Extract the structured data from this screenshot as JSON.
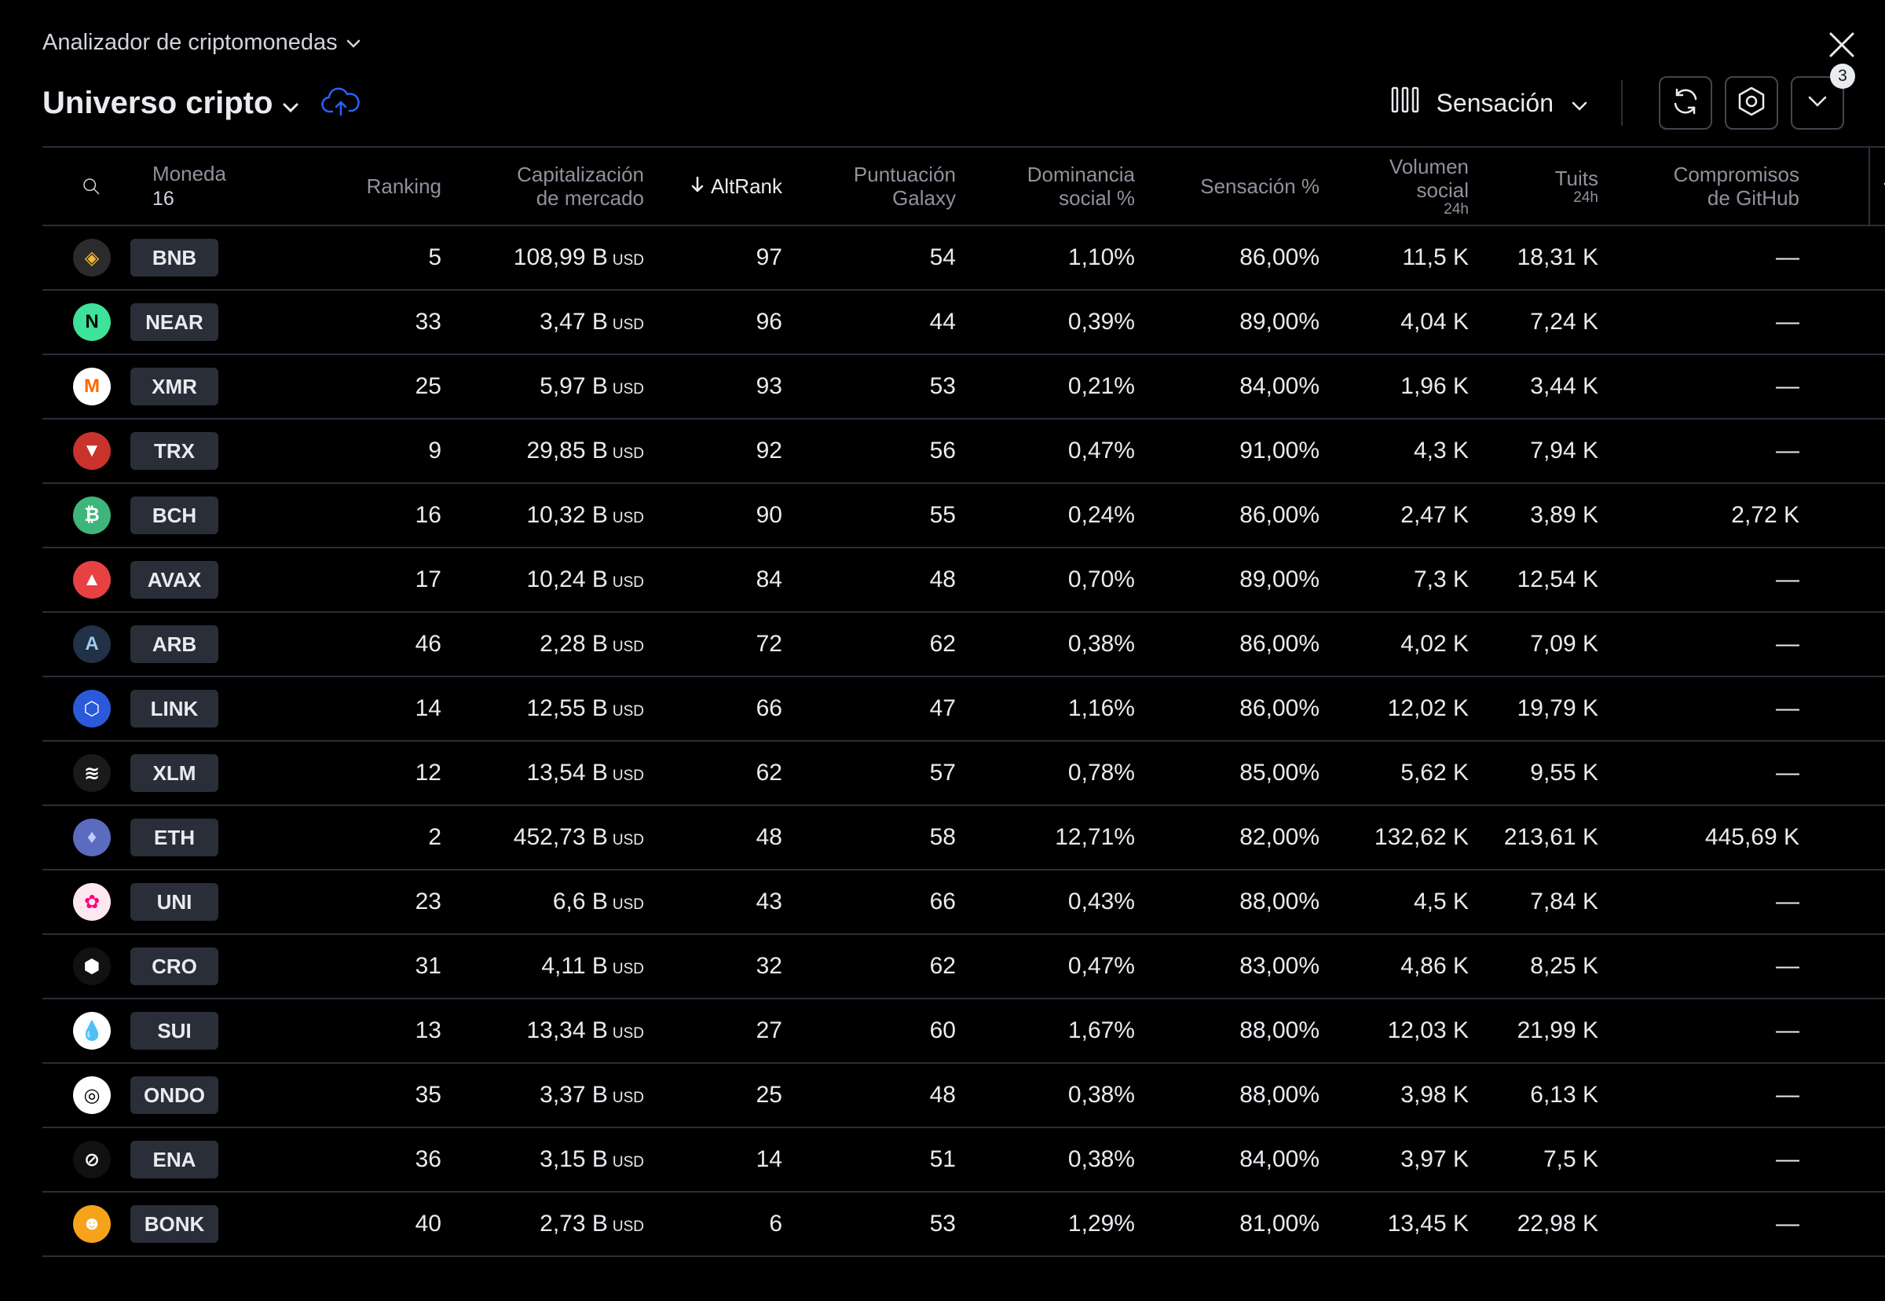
{
  "app": {
    "title": "Analizador de criptomonedas"
  },
  "screen": {
    "title": "Universo cripto"
  },
  "toolbar": {
    "preset_label": "Sensación",
    "badge_count": "3"
  },
  "table": {
    "headers": {
      "coin": "Moneda",
      "coin_count": "16",
      "ranking": "Ranking",
      "market_cap_l1": "Capitalización",
      "market_cap_l2": "de mercado",
      "altrank": "AltRank",
      "galaxy_l1": "Puntuación",
      "galaxy_l2": "Galaxy",
      "dominance_l1": "Dominancia",
      "dominance_l2": "social %",
      "sentiment": "Sensación %",
      "volume_l1": "Volumen",
      "volume_l2": "social",
      "volume_sub": "24h",
      "tweets": "Tuits",
      "tweets_sub": "24h",
      "github_l1": "Compromisos",
      "github_l2": "de GitHub"
    },
    "rows": [
      {
        "ticker": "BNB",
        "ranking": "5",
        "market_cap": "108,99 B",
        "currency": "USD",
        "altrank": "97",
        "galaxy": "54",
        "dominance": "1,10%",
        "sentiment": "86,00%",
        "volume": "11,5 K",
        "tweets": "18,31 K",
        "github": "—",
        "logo_color": "#f3ba2f",
        "logo_bg": "#2b2b2b",
        "logo_glyph": "◈"
      },
      {
        "ticker": "NEAR",
        "ranking": "33",
        "market_cap": "3,47 B",
        "currency": "USD",
        "altrank": "96",
        "galaxy": "44",
        "dominance": "0,39%",
        "sentiment": "89,00%",
        "volume": "4,04 K",
        "tweets": "7,24 K",
        "github": "—",
        "logo_color": "#000000",
        "logo_bg": "#3ee29b",
        "logo_glyph": "N"
      },
      {
        "ticker": "XMR",
        "ranking": "25",
        "market_cap": "5,97 B",
        "currency": "USD",
        "altrank": "93",
        "galaxy": "53",
        "dominance": "0,21%",
        "sentiment": "84,00%",
        "volume": "1,96 K",
        "tweets": "3,44 K",
        "github": "—",
        "logo_color": "#ff6600",
        "logo_bg": "#ffffff",
        "logo_glyph": "M"
      },
      {
        "ticker": "TRX",
        "ranking": "9",
        "market_cap": "29,85 B",
        "currency": "USD",
        "altrank": "92",
        "galaxy": "56",
        "dominance": "0,47%",
        "sentiment": "91,00%",
        "volume": "4,3 K",
        "tweets": "7,94 K",
        "github": "—",
        "logo_color": "#ffffff",
        "logo_bg": "#c9332b",
        "logo_glyph": "▼"
      },
      {
        "ticker": "BCH",
        "ranking": "16",
        "market_cap": "10,32 B",
        "currency": "USD",
        "altrank": "90",
        "galaxy": "55",
        "dominance": "0,24%",
        "sentiment": "86,00%",
        "volume": "2,47 K",
        "tweets": "3,89 K",
        "github": "2,72 K",
        "logo_color": "#ffffff",
        "logo_bg": "#3eb57b",
        "logo_glyph": "₿"
      },
      {
        "ticker": "AVAX",
        "ranking": "17",
        "market_cap": "10,24 B",
        "currency": "USD",
        "altrank": "84",
        "galaxy": "48",
        "dominance": "0,70%",
        "sentiment": "89,00%",
        "volume": "7,3 K",
        "tweets": "12,54 K",
        "github": "—",
        "logo_color": "#ffffff",
        "logo_bg": "#e84142",
        "logo_glyph": "▲"
      },
      {
        "ticker": "ARB",
        "ranking": "46",
        "market_cap": "2,28 B",
        "currency": "USD",
        "altrank": "72",
        "galaxy": "62",
        "dominance": "0,38%",
        "sentiment": "86,00%",
        "volume": "4,02 K",
        "tweets": "7,09 K",
        "github": "—",
        "logo_color": "#9dcced",
        "logo_bg": "#213147",
        "logo_glyph": "A"
      },
      {
        "ticker": "LINK",
        "ranking": "14",
        "market_cap": "12,55 B",
        "currency": "USD",
        "altrank": "66",
        "galaxy": "47",
        "dominance": "1,16%",
        "sentiment": "86,00%",
        "volume": "12,02 K",
        "tweets": "19,79 K",
        "github": "—",
        "logo_color": "#ffffff",
        "logo_bg": "#2a5ada",
        "logo_glyph": "⬡"
      },
      {
        "ticker": "XLM",
        "ranking": "12",
        "market_cap": "13,54 B",
        "currency": "USD",
        "altrank": "62",
        "galaxy": "57",
        "dominance": "0,78%",
        "sentiment": "85,00%",
        "volume": "5,62 K",
        "tweets": "9,55 K",
        "github": "—",
        "logo_color": "#ffffff",
        "logo_bg": "#1a1a1a",
        "logo_glyph": "≋"
      },
      {
        "ticker": "ETH",
        "ranking": "2",
        "market_cap": "452,73 B",
        "currency": "USD",
        "altrank": "48",
        "galaxy": "58",
        "dominance": "12,71%",
        "sentiment": "82,00%",
        "volume": "132,62 K",
        "tweets": "213,61 K",
        "github": "445,69 K",
        "logo_color": "#c4c9ff",
        "logo_bg": "#5b6bbf",
        "logo_glyph": "♦"
      },
      {
        "ticker": "UNI",
        "ranking": "23",
        "market_cap": "6,6 B",
        "currency": "USD",
        "altrank": "43",
        "galaxy": "66",
        "dominance": "0,43%",
        "sentiment": "88,00%",
        "volume": "4,5 K",
        "tweets": "7,84 K",
        "github": "—",
        "logo_color": "#ff007a",
        "logo_bg": "#fde7f1",
        "logo_glyph": "✿"
      },
      {
        "ticker": "CRO",
        "ranking": "31",
        "market_cap": "4,11 B",
        "currency": "USD",
        "altrank": "32",
        "galaxy": "62",
        "dominance": "0,47%",
        "sentiment": "83,00%",
        "volume": "4,86 K",
        "tweets": "8,25 K",
        "github": "—",
        "logo_color": "#ffffff",
        "logo_bg": "#111111",
        "logo_glyph": "⬢"
      },
      {
        "ticker": "SUI",
        "ranking": "13",
        "market_cap": "13,34 B",
        "currency": "USD",
        "altrank": "27",
        "galaxy": "60",
        "dominance": "1,67%",
        "sentiment": "88,00%",
        "volume": "12,03 K",
        "tweets": "21,99 K",
        "github": "—",
        "logo_color": "#4da2ff",
        "logo_bg": "#ffffff",
        "logo_glyph": "💧"
      },
      {
        "ticker": "ONDO",
        "ranking": "35",
        "market_cap": "3,37 B",
        "currency": "USD",
        "altrank": "25",
        "galaxy": "48",
        "dominance": "0,38%",
        "sentiment": "88,00%",
        "volume": "3,98 K",
        "tweets": "6,13 K",
        "github": "—",
        "logo_color": "#000000",
        "logo_bg": "#ffffff",
        "logo_glyph": "◎"
      },
      {
        "ticker": "ENA",
        "ranking": "36",
        "market_cap": "3,15 B",
        "currency": "USD",
        "altrank": "14",
        "galaxy": "51",
        "dominance": "0,38%",
        "sentiment": "84,00%",
        "volume": "3,97 K",
        "tweets": "7,5 K",
        "github": "—",
        "logo_color": "#ffffff",
        "logo_bg": "#111111",
        "logo_glyph": "⊘"
      },
      {
        "ticker": "BONK",
        "ranking": "40",
        "market_cap": "2,73 B",
        "currency": "USD",
        "altrank": "6",
        "galaxy": "53",
        "dominance": "1,29%",
        "sentiment": "81,00%",
        "volume": "13,45 K",
        "tweets": "22,98 K",
        "github": "—",
        "logo_color": "#ffffff",
        "logo_bg": "#f7a21b",
        "logo_glyph": "☻"
      }
    ]
  },
  "colors": {
    "background": "#000000",
    "text": "#e9ebef",
    "muted": "#8f929c",
    "divider": "#2a2e39",
    "accent_cloud": "#2962ff"
  }
}
